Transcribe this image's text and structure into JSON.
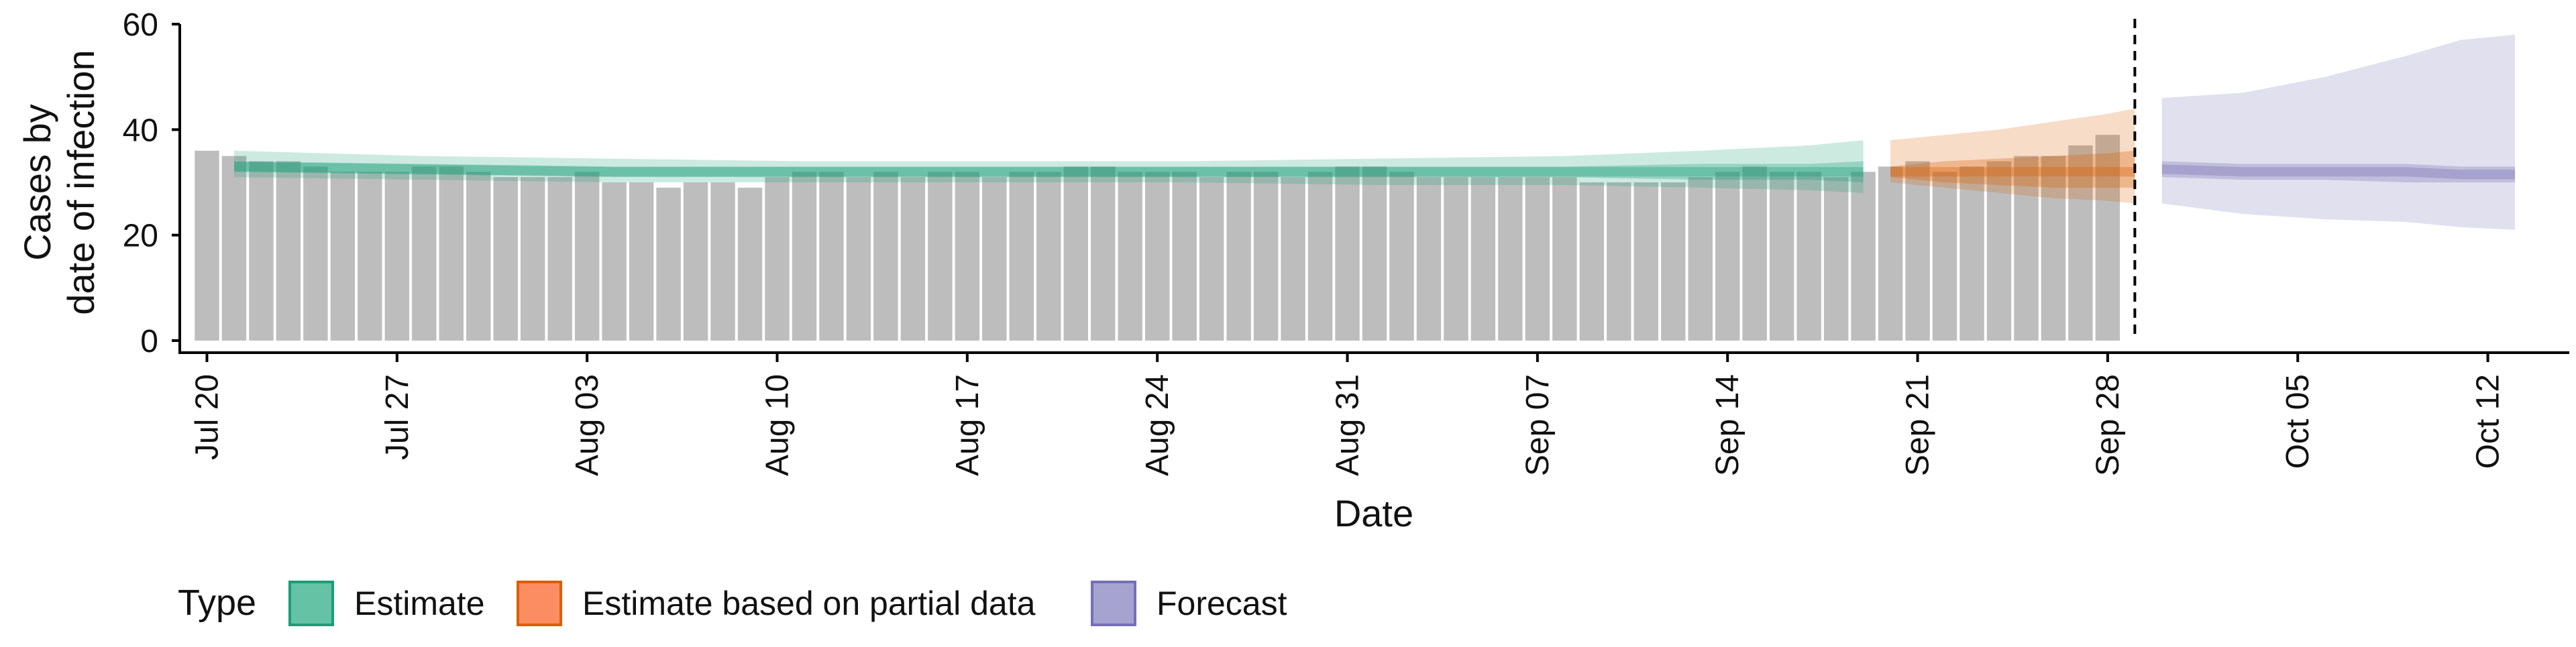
{
  "chart_data": {
    "type": "bar",
    "title": "",
    "xlabel": "Date",
    "ylabel_lines": [
      "Cases by",
      "date of infection"
    ],
    "ylim": [
      0,
      60
    ],
    "y_ticks": [
      0,
      20,
      40,
      60
    ],
    "x_range": [
      "2020-07-19",
      "2020-10-15"
    ],
    "x_ticks": [
      {
        "date": "2020-07-20",
        "label": "Jul 20"
      },
      {
        "date": "2020-07-27",
        "label": "Jul 27"
      },
      {
        "date": "2020-08-03",
        "label": "Aug 03"
      },
      {
        "date": "2020-08-10",
        "label": "Aug 10"
      },
      {
        "date": "2020-08-17",
        "label": "Aug 17"
      },
      {
        "date": "2020-08-24",
        "label": "Aug 24"
      },
      {
        "date": "2020-08-31",
        "label": "Aug 31"
      },
      {
        "date": "2020-09-07",
        "label": "Sep 07"
      },
      {
        "date": "2020-09-14",
        "label": "Sep 14"
      },
      {
        "date": "2020-09-21",
        "label": "Sep 21"
      },
      {
        "date": "2020-09-28",
        "label": "Sep 28"
      },
      {
        "date": "2020-10-05",
        "label": "Oct 05"
      },
      {
        "date": "2020-10-12",
        "label": "Oct 12"
      }
    ],
    "vline_date": "2020-09-29",
    "grid": false,
    "legend_position": "bottom-left",
    "bar_color": "#bdbdbd",
    "observed_cases": {
      "start_date": "2020-07-20",
      "values": [
        36,
        35,
        34,
        34,
        33,
        32,
        32,
        32,
        33,
        33,
        32,
        31,
        31,
        31,
        32,
        30,
        30,
        29,
        30,
        30,
        29,
        31,
        32,
        32,
        31,
        32,
        31,
        32,
        32,
        31,
        32,
        32,
        33,
        33,
        32,
        32,
        32,
        31,
        32,
        32,
        31,
        32,
        33,
        33,
        32,
        31,
        31,
        31,
        31,
        31,
        31,
        30,
        30,
        30,
        30,
        31,
        32,
        33,
        32,
        32,
        31,
        32,
        33,
        34,
        32,
        33,
        34,
        35,
        35,
        37,
        39
      ]
    },
    "legend": {
      "title": "Type",
      "items": [
        {
          "key": "estimate",
          "label": "Estimate",
          "fill": "#66c2a5",
          "border": "#1b9e77"
        },
        {
          "key": "partial",
          "label": "Estimate based on partial data",
          "fill": "#fc8d62",
          "border": "#d95f02"
        },
        {
          "key": "forecast",
          "label": "Forecast",
          "fill": "#a6a3d0",
          "border": "#7570b3"
        }
      ]
    },
    "series": [
      {
        "key": "estimate",
        "color": "#1b9e77",
        "x": [
          "2020-07-21",
          "2020-07-28",
          "2020-08-04",
          "2020-08-11",
          "2020-08-18",
          "2020-08-25",
          "2020-09-01",
          "2020-09-08",
          "2020-09-13",
          "2020-09-17",
          "2020-09-19"
        ],
        "median": [
          33,
          32.5,
          32,
          32,
          32,
          32,
          32,
          32,
          32,
          32,
          32
        ],
        "inner_lower": [
          32,
          31.5,
          31,
          31,
          31,
          31,
          31,
          31,
          30.5,
          30.5,
          30
        ],
        "inner_upper": [
          34,
          33.5,
          33,
          33,
          33,
          33,
          33,
          33,
          33.5,
          33.5,
          34
        ],
        "outer_lower": [
          31,
          30.5,
          30,
          30,
          30,
          30,
          29.5,
          29.5,
          29,
          28.5,
          28
        ],
        "outer_upper": [
          36,
          35,
          34.5,
          34,
          34,
          34,
          34.5,
          35,
          36,
          37,
          38
        ]
      },
      {
        "key": "partial",
        "color": "#d95f02",
        "x": [
          "2020-09-20",
          "2020-09-22",
          "2020-09-24",
          "2020-09-26",
          "2020-09-28",
          "2020-09-29"
        ],
        "median": [
          32,
          32,
          32,
          32,
          32,
          32
        ],
        "inner_lower": [
          31,
          30,
          29.5,
          29,
          29,
          29
        ],
        "inner_upper": [
          33,
          34,
          34.5,
          35,
          35.5,
          36
        ],
        "outer_lower": [
          30,
          29,
          28,
          27,
          26.5,
          26
        ],
        "outer_upper": [
          38,
          39,
          40,
          41.5,
          43,
          44
        ]
      },
      {
        "key": "forecast",
        "color": "#7570b3",
        "x": [
          "2020-09-30",
          "2020-10-03",
          "2020-10-06",
          "2020-10-09",
          "2020-10-11",
          "2020-10-13"
        ],
        "median": [
          32.5,
          32,
          32,
          32,
          31.5,
          31.5
        ],
        "inner_lower": [
          31,
          30.5,
          30.5,
          30,
          30,
          30
        ],
        "inner_upper": [
          34,
          33.5,
          33.5,
          33.5,
          33,
          33
        ],
        "outer_lower": [
          26,
          24,
          23,
          22.5,
          21.5,
          21
        ],
        "outer_upper": [
          46,
          47,
          50,
          54,
          57,
          58
        ]
      }
    ]
  }
}
